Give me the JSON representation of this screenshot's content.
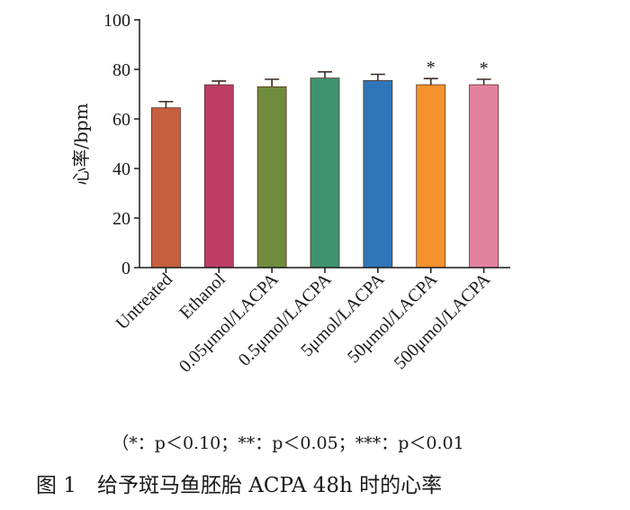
{
  "chart_data": {
    "type": "bar",
    "ylabel": "心率/bpm",
    "ylim": [
      0,
      100
    ],
    "yticks": [
      "0",
      "20",
      "40",
      "60",
      "80",
      "100"
    ],
    "categories": [
      "Untreated",
      "Ethanol",
      "0.05μmol/LACPA",
      "0.5μmol/LACPA",
      "5μmol/LACPA",
      "50μmol/LACPA",
      "500μmol/LACPA"
    ],
    "values": [
      64.5,
      73.8,
      73.0,
      76.5,
      75.5,
      73.8,
      73.8
    ],
    "errors": [
      2.5,
      1.5,
      3.0,
      2.5,
      2.5,
      2.5,
      2.2
    ],
    "colors": [
      "#c55f3e",
      "#bb3d66",
      "#6f8c3c",
      "#3e9371",
      "#2f76b8",
      "#f6922d",
      "#e483a0"
    ],
    "significance": [
      "",
      "",
      "",
      "",
      "",
      "*",
      "*"
    ]
  },
  "footnote": "（*：p＜0.10；**：p＜0.05；***：p＜0.01",
  "caption": "图 1　给予斑马鱼胚胎 ACPA 48h 时的心率"
}
